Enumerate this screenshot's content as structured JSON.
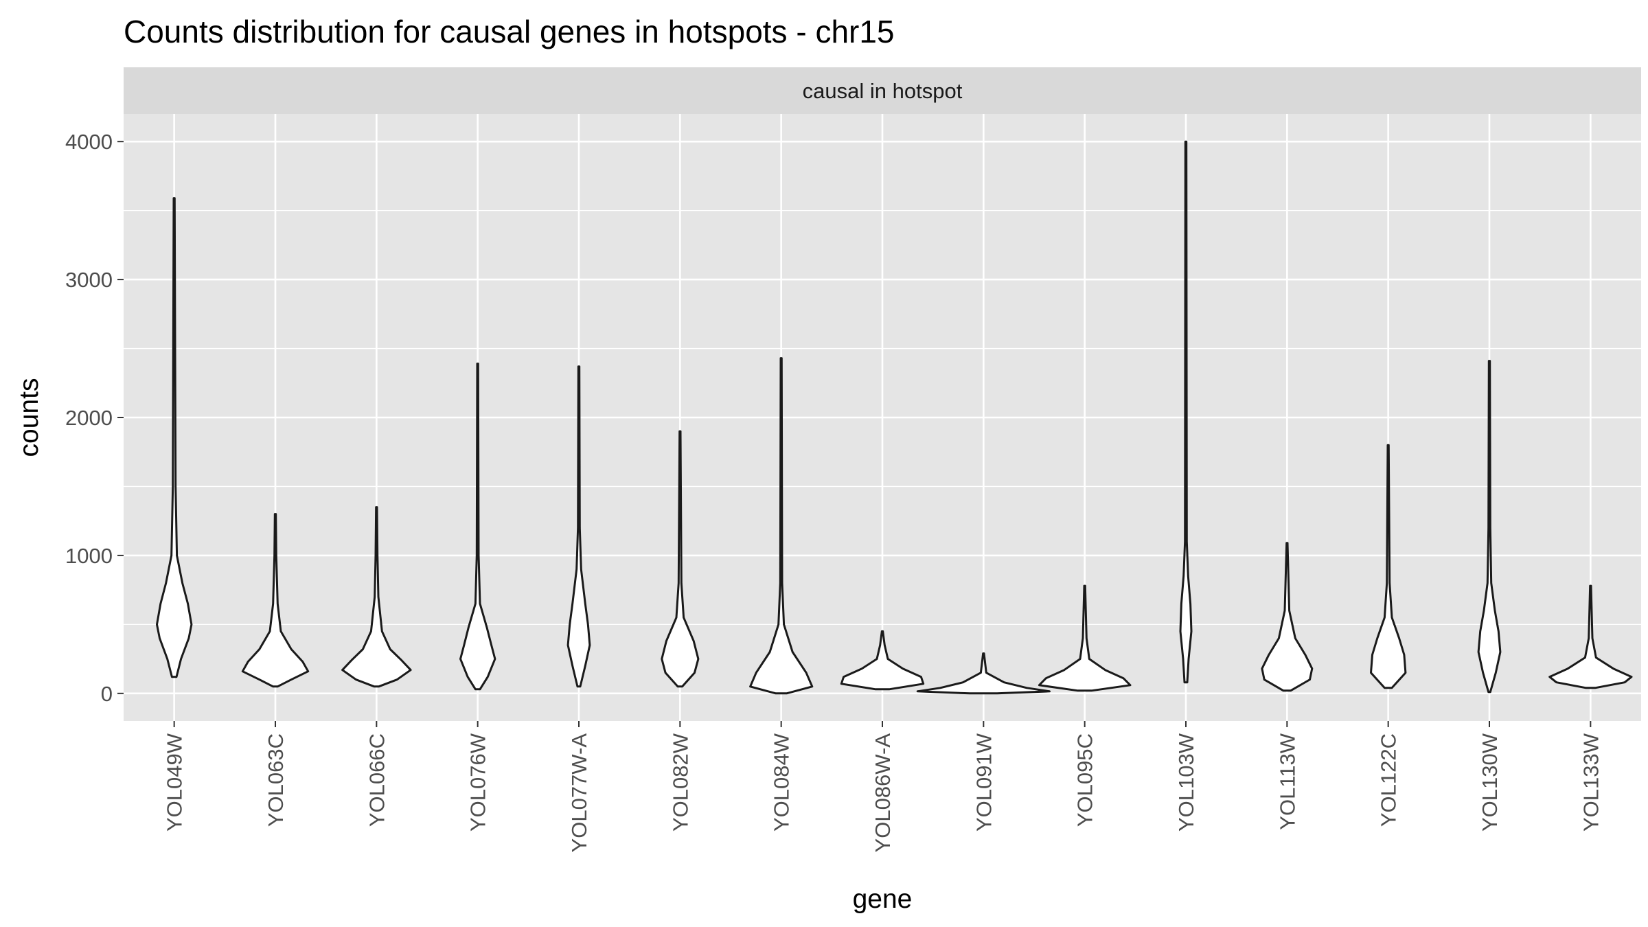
{
  "chart_data": {
    "type": "violin",
    "title": "Counts distribution for causal genes in hotspots - chr15",
    "facet_label": "causal in hotspot",
    "xlabel": "gene",
    "ylabel": "counts",
    "ylim": [
      -200,
      4200
    ],
    "y_ticks": [
      0,
      1000,
      2000,
      3000,
      4000
    ],
    "grid": true,
    "colors": {
      "panel": "#e5e5e5",
      "strip": "#d9d9d9",
      "grid": "#ffffff",
      "outline": "#1a1a1a"
    },
    "categories": [
      "YOL049W",
      "YOL063C",
      "YOL066C",
      "YOL076W",
      "YOL077W-A",
      "YOL082W",
      "YOL084W",
      "YOL086W-A",
      "YOL091W",
      "YOL095C",
      "YOL103W",
      "YOL113W",
      "YOL122C",
      "YOL130W",
      "YOL133W"
    ],
    "series": [
      {
        "gene": "YOL049W",
        "min": 120,
        "max": 3590,
        "density": [
          [
            120,
            0.05
          ],
          [
            250,
            0.15
          ],
          [
            400,
            0.32
          ],
          [
            500,
            0.38
          ],
          [
            650,
            0.3
          ],
          [
            800,
            0.18
          ],
          [
            1000,
            0.06
          ],
          [
            1500,
            0.03
          ],
          [
            2500,
            0.02
          ],
          [
            3590,
            0.01
          ]
        ]
      },
      {
        "gene": "YOL063C",
        "min": 50,
        "max": 1300,
        "density": [
          [
            50,
            0.05
          ],
          [
            100,
            0.35
          ],
          [
            160,
            0.72
          ],
          [
            230,
            0.6
          ],
          [
            320,
            0.35
          ],
          [
            450,
            0.12
          ],
          [
            650,
            0.05
          ],
          [
            1000,
            0.02
          ],
          [
            1300,
            0.01
          ]
        ]
      },
      {
        "gene": "YOL066C",
        "min": 50,
        "max": 1350,
        "density": [
          [
            50,
            0.05
          ],
          [
            100,
            0.45
          ],
          [
            170,
            0.75
          ],
          [
            240,
            0.55
          ],
          [
            320,
            0.3
          ],
          [
            450,
            0.12
          ],
          [
            700,
            0.04
          ],
          [
            1000,
            0.02
          ],
          [
            1350,
            0.01
          ]
        ]
      },
      {
        "gene": "YOL076W",
        "min": 30,
        "max": 2390,
        "density": [
          [
            30,
            0.05
          ],
          [
            120,
            0.22
          ],
          [
            250,
            0.38
          ],
          [
            350,
            0.3
          ],
          [
            480,
            0.2
          ],
          [
            650,
            0.05
          ],
          [
            1000,
            0.02
          ],
          [
            2390,
            0.01
          ]
        ]
      },
      {
        "gene": "YOL077W-A",
        "min": 50,
        "max": 2370,
        "density": [
          [
            50,
            0.03
          ],
          [
            200,
            0.14
          ],
          [
            350,
            0.24
          ],
          [
            500,
            0.2
          ],
          [
            650,
            0.14
          ],
          [
            900,
            0.05
          ],
          [
            1200,
            0.02
          ],
          [
            2370,
            0.01
          ]
        ]
      },
      {
        "gene": "YOL082W",
        "min": 50,
        "max": 1900,
        "density": [
          [
            50,
            0.05
          ],
          [
            150,
            0.32
          ],
          [
            250,
            0.4
          ],
          [
            380,
            0.3
          ],
          [
            550,
            0.08
          ],
          [
            800,
            0.03
          ],
          [
            1900,
            0.01
          ]
        ]
      },
      {
        "gene": "YOL084W",
        "min": 0,
        "max": 2430,
        "density": [
          [
            0,
            0.12
          ],
          [
            50,
            0.68
          ],
          [
            150,
            0.55
          ],
          [
            300,
            0.25
          ],
          [
            500,
            0.06
          ],
          [
            800,
            0.02
          ],
          [
            2430,
            0.01
          ]
        ]
      },
      {
        "gene": "YOL086W-A",
        "min": 30,
        "max": 450,
        "density": [
          [
            30,
            0.15
          ],
          [
            70,
            0.9
          ],
          [
            120,
            0.85
          ],
          [
            180,
            0.45
          ],
          [
            250,
            0.12
          ],
          [
            350,
            0.05
          ],
          [
            450,
            0.01
          ]
        ]
      },
      {
        "gene": "YOL091W",
        "min": 0,
        "max": 290,
        "density": [
          [
            0,
            0.3
          ],
          [
            15,
            1.45
          ],
          [
            40,
            0.95
          ],
          [
            80,
            0.45
          ],
          [
            150,
            0.06
          ],
          [
            290,
            0.01
          ]
        ]
      },
      {
        "gene": "YOL095C",
        "min": 20,
        "max": 780,
        "density": [
          [
            20,
            0.15
          ],
          [
            60,
            1.0
          ],
          [
            110,
            0.85
          ],
          [
            170,
            0.45
          ],
          [
            250,
            0.1
          ],
          [
            400,
            0.04
          ],
          [
            780,
            0.01
          ]
        ]
      },
      {
        "gene": "YOL103W",
        "min": 80,
        "max": 4000,
        "density": [
          [
            80,
            0.03
          ],
          [
            250,
            0.06
          ],
          [
            450,
            0.12
          ],
          [
            650,
            0.1
          ],
          [
            850,
            0.05
          ],
          [
            1100,
            0.02
          ],
          [
            4000,
            0.01
          ]
        ]
      },
      {
        "gene": "YOL113W",
        "min": 20,
        "max": 1090,
        "density": [
          [
            20,
            0.08
          ],
          [
            100,
            0.5
          ],
          [
            180,
            0.55
          ],
          [
            280,
            0.4
          ],
          [
            400,
            0.18
          ],
          [
            600,
            0.05
          ],
          [
            1090,
            0.01
          ]
        ]
      },
      {
        "gene": "YOL122C",
        "min": 40,
        "max": 1800,
        "density": [
          [
            40,
            0.08
          ],
          [
            150,
            0.38
          ],
          [
            280,
            0.35
          ],
          [
            400,
            0.24
          ],
          [
            550,
            0.08
          ],
          [
            800,
            0.03
          ],
          [
            1800,
            0.01
          ]
        ]
      },
      {
        "gene": "YOL130W",
        "min": 10,
        "max": 2410,
        "density": [
          [
            10,
            0.02
          ],
          [
            150,
            0.14
          ],
          [
            300,
            0.24
          ],
          [
            450,
            0.2
          ],
          [
            600,
            0.12
          ],
          [
            800,
            0.04
          ],
          [
            1200,
            0.02
          ],
          [
            2410,
            0.01
          ]
        ]
      },
      {
        "gene": "YOL133W",
        "min": 40,
        "max": 780,
        "density": [
          [
            40,
            0.1
          ],
          [
            80,
            0.75
          ],
          [
            120,
            0.9
          ],
          [
            180,
            0.5
          ],
          [
            260,
            0.12
          ],
          [
            400,
            0.04
          ],
          [
            780,
            0.01
          ]
        ]
      }
    ]
  }
}
